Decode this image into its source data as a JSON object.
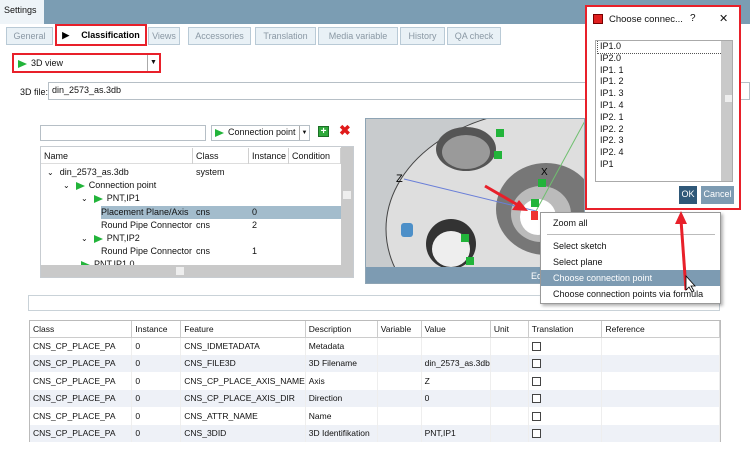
{
  "window": {
    "title": "Settings"
  },
  "tabs": [
    {
      "label": "General"
    },
    {
      "label": "Classification",
      "active": true
    },
    {
      "label": "Views"
    },
    {
      "label": "Accessories"
    },
    {
      "label": "Translation"
    },
    {
      "label": "Media variable"
    },
    {
      "label": "History"
    },
    {
      "label": "QA check"
    }
  ],
  "view_select": {
    "value": "3D view"
  },
  "file": {
    "label": "3D file:",
    "value": "din_2573_as.3db"
  },
  "filter": {
    "search_value": "",
    "type_value": "Connection point"
  },
  "tree": {
    "columns": [
      "Name",
      "Class system",
      "Instance",
      "Condition"
    ],
    "rows": [
      {
        "name": "din_2573_as.3db",
        "cs": "",
        "inst": ""
      },
      {
        "name": "Connection point",
        "cs": "",
        "inst": ""
      },
      {
        "name": "PNT,IP1",
        "cs": "",
        "inst": ""
      },
      {
        "name": "Placement Plane/Axis",
        "cs": "cns",
        "inst": "0",
        "selected": true
      },
      {
        "name": "Round Pipe Connector",
        "cs": "cns",
        "inst": "2"
      },
      {
        "name": "PNT,IP2",
        "cs": "",
        "inst": ""
      },
      {
        "name": "Round Pipe Connector",
        "cs": "cns",
        "inst": "1"
      },
      {
        "name": "PNT,IP1.0",
        "cs": "",
        "inst": ""
      }
    ]
  },
  "viewer": {
    "axis_z": "Z",
    "axis_x": "X",
    "bottom_label": "Ed"
  },
  "context_menu": {
    "items": [
      "Zoom all",
      "Select sketch",
      "Select plane",
      "Choose connection point",
      "Choose connection points via formula"
    ],
    "highlighted": "Choose connection point"
  },
  "dialog": {
    "title": "Choose connec...",
    "help": "?",
    "close": "✕",
    "items": [
      "IP1.0",
      "IP2.0",
      "IP1. 1",
      "IP1. 2",
      "IP1. 3",
      "IP1. 4",
      "IP2. 1",
      "IP2. 2",
      "IP2. 3",
      "IP2. 4",
      "IP1"
    ],
    "ok": "OK",
    "cancel": "Cancel"
  },
  "table": {
    "columns": [
      "Class",
      "Instance",
      "Feature",
      "Description",
      "Variable",
      "Value",
      "Unit",
      "Translation",
      "Reference"
    ],
    "rows": [
      [
        "CNS_CP_PLACE_PA",
        "0",
        "CNS_IDMETADATA",
        "Metadata",
        "",
        "",
        "",
        ""
      ],
      [
        "CNS_CP_PLACE_PA",
        "0",
        "CNS_FILE3D",
        "3D Filename",
        "",
        "din_2573_as.3db",
        "",
        ""
      ],
      [
        "CNS_CP_PLACE_PA",
        "0",
        "CNS_CP_PLACE_AXIS_NAME",
        "Axis",
        "",
        "Z",
        "",
        ""
      ],
      [
        "CNS_CP_PLACE_PA",
        "0",
        "CNS_CP_PLACE_AXIS_DIR",
        "Direction",
        "",
        "0",
        "",
        ""
      ],
      [
        "CNS_CP_PLACE_PA",
        "0",
        "CNS_ATTR_NAME",
        "Name",
        "",
        "",
        "",
        ""
      ],
      [
        "CNS_CP_PLACE_PA",
        "0",
        "CNS_3DID",
        "3D Identifikation",
        "",
        "PNT,IP1",
        "",
        ""
      ]
    ]
  },
  "colors": {
    "highlight_red": "#e8202a",
    "accent": "#7d9bb2",
    "green": "#22b43a"
  }
}
